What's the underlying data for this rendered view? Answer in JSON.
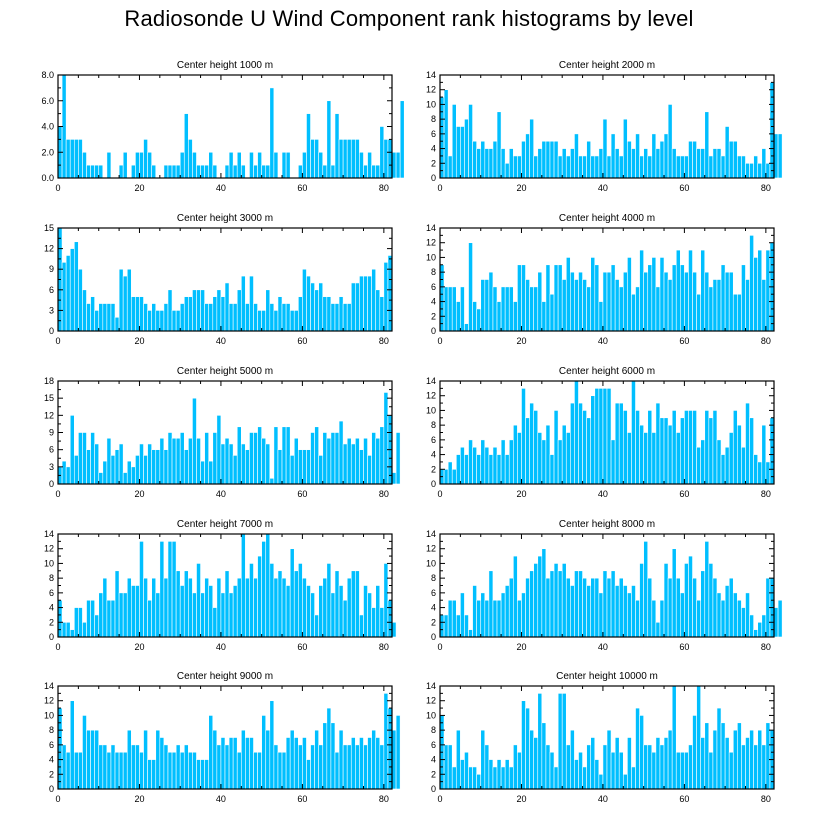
{
  "title": "Radiosonde U Wind Component rank histograms by level",
  "colors": {
    "bar": "#00bfff",
    "bar_edge": "#ffffff",
    "axis": "#000000"
  },
  "chart_data": [
    {
      "type": "bar",
      "title": "Center height 1000 m",
      "xlim": [
        0,
        82
      ],
      "ylim": [
        0,
        8
      ],
      "xticks": [
        0,
        20,
        40,
        60,
        80
      ],
      "xtick_labels": [
        "0",
        "20",
        "40",
        "60",
        "80"
      ],
      "yticks": [
        0,
        2,
        4,
        6,
        8
      ],
      "ytick_labels": [
        "0.0",
        "2.0",
        "4.0",
        "6.0",
        "8.0"
      ],
      "values": [
        4,
        8,
        3,
        3,
        3,
        3,
        2,
        1,
        1,
        1,
        1,
        0,
        2,
        0,
        0,
        1,
        2,
        0,
        1,
        2,
        2,
        3,
        2,
        1,
        0,
        0,
        1,
        1,
        1,
        1,
        2,
        5,
        3,
        2,
        1,
        1,
        1,
        2,
        1,
        0,
        0,
        1,
        2,
        1,
        2,
        1,
        0,
        2,
        1,
        2,
        1,
        1,
        7,
        2,
        0,
        2,
        2,
        0,
        0,
        1,
        2,
        5,
        3,
        3,
        2,
        1,
        6,
        1,
        5,
        3,
        3,
        3,
        3,
        3,
        2,
        1,
        2,
        1,
        1,
        4,
        3,
        3,
        2,
        2,
        6
      ]
    },
    {
      "type": "bar",
      "title": "Center height 2000 m",
      "xlim": [
        0,
        82
      ],
      "ylim": [
        0,
        14
      ],
      "xticks": [
        0,
        20,
        40,
        60,
        80
      ],
      "xtick_labels": [
        "0",
        "20",
        "40",
        "60",
        "80"
      ],
      "yticks": [
        0,
        2,
        4,
        6,
        8,
        10,
        12,
        14
      ],
      "ytick_labels": [
        "0",
        "2",
        "4",
        "6",
        "8",
        "10",
        "12",
        "14"
      ],
      "values": [
        11,
        12,
        3,
        10,
        7,
        7,
        8,
        10,
        5,
        4,
        5,
        4,
        4,
        5,
        9,
        4,
        2,
        4,
        3,
        3,
        5,
        6,
        8,
        3,
        4,
        5,
        5,
        5,
        5,
        3,
        4,
        3,
        4,
        6,
        3,
        3,
        5,
        3,
        3,
        4,
        8,
        3,
        6,
        4,
        3,
        8,
        5,
        4,
        6,
        3,
        4,
        3,
        6,
        4,
        5,
        6,
        10,
        4,
        3,
        3,
        3,
        5,
        5,
        4,
        4,
        9,
        3,
        4,
        4,
        3,
        7,
        5,
        5,
        3,
        3,
        2,
        2,
        3,
        2,
        4,
        2,
        13,
        6,
        6
      ]
    },
    {
      "type": "bar",
      "title": "Center height 3000 m",
      "xlim": [
        0,
        82
      ],
      "ylim": [
        0,
        15
      ],
      "xticks": [
        0,
        20,
        40,
        60,
        80
      ],
      "xtick_labels": [
        "0",
        "20",
        "40",
        "60",
        "80"
      ],
      "yticks": [
        0,
        3,
        6,
        9,
        12,
        15
      ],
      "ytick_labels": [
        "0",
        "3",
        "6",
        "9",
        "12",
        "15"
      ],
      "values": [
        15,
        10,
        11,
        12,
        13,
        9,
        6,
        4,
        5,
        3,
        4,
        4,
        4,
        4,
        2,
        9,
        8,
        9,
        5,
        5,
        5,
        4,
        3,
        4,
        3,
        3,
        4,
        6,
        3,
        3,
        4,
        5,
        5,
        6,
        6,
        6,
        4,
        4,
        5,
        6,
        5,
        7,
        4,
        4,
        6,
        8,
        4,
        8,
        4,
        3,
        3,
        6,
        4,
        3,
        5,
        4,
        4,
        3,
        3,
        5,
        9,
        8,
        7,
        6,
        7,
        5,
        5,
        4,
        4,
        5,
        4,
        4,
        7,
        7,
        8,
        8,
        8,
        9,
        6,
        5,
        10,
        11
      ]
    },
    {
      "type": "bar",
      "title": "Center height 4000 m",
      "xlim": [
        0,
        82
      ],
      "ylim": [
        0,
        14
      ],
      "xticks": [
        0,
        20,
        40,
        60,
        80
      ],
      "xtick_labels": [
        "0",
        "20",
        "40",
        "60",
        "80"
      ],
      "yticks": [
        0,
        2,
        4,
        6,
        8,
        10,
        12,
        14
      ],
      "ytick_labels": [
        "0",
        "2",
        "4",
        "6",
        "8",
        "10",
        "12",
        "14"
      ],
      "values": [
        9,
        6,
        6,
        6,
        4,
        6,
        1,
        12,
        4,
        3,
        7,
        7,
        8,
        6,
        4,
        6,
        6,
        6,
        4,
        9,
        9,
        7,
        6,
        6,
        8,
        4,
        9,
        5,
        9,
        9,
        7,
        10,
        8,
        7,
        8,
        7,
        6,
        10,
        9,
        4,
        8,
        8,
        9,
        7,
        6,
        8,
        10,
        5,
        6,
        11,
        8,
        9,
        10,
        6,
        10,
        8,
        7,
        9,
        11,
        9,
        8,
        11,
        8,
        5,
        11,
        8,
        6,
        7,
        7,
        9,
        8,
        8,
        5,
        5,
        9,
        7,
        13,
        10,
        11,
        7,
        11,
        12
      ]
    },
    {
      "type": "bar",
      "title": "Center height 5000 m",
      "xlim": [
        0,
        82
      ],
      "ylim": [
        0,
        18
      ],
      "xticks": [
        0,
        20,
        40,
        60,
        80
      ],
      "xtick_labels": [
        "0",
        "20",
        "40",
        "60",
        "80"
      ],
      "yticks": [
        0,
        3,
        6,
        9,
        12,
        15,
        18
      ],
      "ytick_labels": [
        "0",
        "3",
        "6",
        "9",
        "12",
        "15",
        "18"
      ],
      "values": [
        3,
        4,
        3,
        12,
        5,
        9,
        9,
        6,
        9,
        7,
        2,
        4,
        8,
        5,
        6,
        7,
        2,
        4,
        3,
        5,
        7,
        5,
        7,
        6,
        6,
        8,
        6,
        9,
        8,
        8,
        9,
        6,
        8,
        15,
        8,
        4,
        9,
        4,
        9,
        12,
        7,
        8,
        7,
        5,
        10,
        7,
        6,
        9,
        9,
        10,
        8,
        7,
        1,
        10,
        6,
        10,
        10,
        5,
        8,
        6,
        6,
        6,
        9,
        10,
        5,
        9,
        8,
        9,
        9,
        11,
        7,
        8,
        7,
        8,
        6,
        8,
        5,
        9,
        8,
        10,
        16,
        12,
        2,
        9
      ]
    },
    {
      "type": "bar",
      "title": "Center height 6000 m",
      "xlim": [
        0,
        82
      ],
      "ylim": [
        0,
        14
      ],
      "xticks": [
        0,
        20,
        40,
        60,
        80
      ],
      "xtick_labels": [
        "0",
        "20",
        "40",
        "60",
        "80"
      ],
      "yticks": [
        0,
        2,
        4,
        6,
        8,
        10,
        12,
        14
      ],
      "ytick_labels": [
        "0",
        "2",
        "4",
        "6",
        "8",
        "10",
        "12",
        "14"
      ],
      "values": [
        2,
        2,
        3,
        2,
        4,
        5,
        4,
        6,
        5,
        4,
        6,
        5,
        4,
        5,
        4,
        6,
        4,
        6,
        8,
        7,
        13,
        9,
        11,
        10,
        7,
        6,
        8,
        4,
        10,
        6,
        8,
        7,
        11,
        14,
        11,
        10,
        9,
        12,
        13,
        13,
        13,
        13,
        6,
        11,
        11,
        10,
        7,
        14,
        10,
        8,
        7,
        10,
        7,
        11,
        9,
        9,
        8,
        10,
        7,
        9,
        10,
        10,
        10,
        5,
        6,
        10,
        9,
        10,
        6,
        4,
        5,
        7,
        10,
        8,
        5,
        11,
        9,
        4,
        3,
        8,
        3,
        9
      ]
    },
    {
      "type": "bar",
      "title": "Center height 7000 m",
      "xlim": [
        0,
        82
      ],
      "ylim": [
        0,
        14
      ],
      "xticks": [
        0,
        20,
        40,
        60,
        80
      ],
      "xtick_labels": [
        "0",
        "20",
        "40",
        "60",
        "80"
      ],
      "yticks": [
        0,
        2,
        4,
        6,
        8,
        10,
        12,
        14
      ],
      "ytick_labels": [
        "0",
        "2",
        "4",
        "6",
        "8",
        "10",
        "12",
        "14"
      ],
      "values": [
        5,
        2,
        2,
        1,
        4,
        4,
        2,
        5,
        5,
        3,
        6,
        8,
        5,
        5,
        9,
        6,
        6,
        8,
        7,
        7,
        13,
        8,
        5,
        8,
        6,
        13,
        8,
        13,
        13,
        9,
        7,
        9,
        8,
        6,
        10,
        6,
        8,
        7,
        4,
        8,
        6,
        9,
        6,
        7,
        8,
        14,
        8,
        10,
        8,
        11,
        13,
        14,
        10,
        8,
        9,
        8,
        7,
        12,
        9,
        10,
        8,
        7,
        6,
        3,
        7,
        8,
        10,
        6,
        9,
        7,
        5,
        8,
        9,
        9,
        3,
        7,
        6,
        4,
        7,
        4,
        10,
        5,
        2
      ]
    },
    {
      "type": "bar",
      "title": "Center height 8000 m",
      "xlim": [
        0,
        82
      ],
      "ylim": [
        0,
        14
      ],
      "xticks": [
        0,
        20,
        40,
        60,
        80
      ],
      "xtick_labels": [
        "0",
        "20",
        "40",
        "60",
        "80"
      ],
      "yticks": [
        0,
        2,
        4,
        6,
        8,
        10,
        12,
        14
      ],
      "ytick_labels": [
        "0",
        "2",
        "4",
        "6",
        "8",
        "10",
        "12",
        "14"
      ],
      "values": [
        3,
        3,
        5,
        5,
        3,
        6,
        3,
        1,
        7,
        5,
        6,
        5,
        9,
        5,
        5,
        6,
        7,
        8,
        11,
        5,
        6,
        8,
        9,
        10,
        11,
        12,
        8,
        9,
        10,
        9,
        10,
        8,
        7,
        9,
        9,
        8,
        7,
        8,
        8,
        6,
        9,
        8,
        9,
        7,
        8,
        7,
        6,
        7,
        5,
        10,
        13,
        8,
        5,
        2,
        5,
        10,
        8,
        12,
        8,
        6,
        10,
        11,
        8,
        5,
        9,
        13,
        10,
        8,
        6,
        5,
        7,
        8,
        6,
        5,
        4,
        6,
        3,
        1,
        2,
        3,
        8,
        8,
        4,
        5
      ]
    },
    {
      "type": "bar",
      "title": "Center height 9000 m",
      "xlim": [
        0,
        82
      ],
      "ylim": [
        0,
        14
      ],
      "xticks": [
        0,
        20,
        40,
        60,
        80
      ],
      "xtick_labels": [
        "0",
        "20",
        "40",
        "60",
        "80"
      ],
      "yticks": [
        0,
        2,
        4,
        6,
        8,
        10,
        12,
        14
      ],
      "ytick_labels": [
        "0",
        "2",
        "4",
        "6",
        "8",
        "10",
        "12",
        "14"
      ],
      "values": [
        11,
        6,
        5,
        12,
        5,
        5,
        10,
        8,
        8,
        8,
        6,
        6,
        5,
        6,
        5,
        5,
        5,
        8,
        6,
        6,
        5,
        8,
        4,
        4,
        8,
        7,
        6,
        5,
        5,
        6,
        5,
        6,
        5,
        5,
        4,
        4,
        4,
        10,
        8,
        6,
        7,
        6,
        7,
        7,
        5,
        8,
        7,
        7,
        5,
        5,
        10,
        8,
        12,
        6,
        5,
        5,
        7,
        8,
        7,
        6,
        7,
        4,
        6,
        8,
        6,
        9,
        11,
        9,
        5,
        8,
        6,
        6,
        7,
        6,
        7,
        6,
        7,
        8,
        7,
        6,
        13,
        11,
        8,
        10
      ]
    },
    {
      "type": "bar",
      "title": "Center height 10000 m",
      "xlim": [
        0,
        82
      ],
      "ylim": [
        0,
        14
      ],
      "xticks": [
        0,
        20,
        40,
        60,
        80
      ],
      "xtick_labels": [
        "0",
        "20",
        "40",
        "60",
        "80"
      ],
      "yticks": [
        0,
        2,
        4,
        6,
        8,
        10,
        12,
        14
      ],
      "ytick_labels": [
        "0",
        "2",
        "4",
        "6",
        "8",
        "10",
        "12",
        "14"
      ],
      "values": [
        10,
        6,
        6,
        3,
        8,
        4,
        5,
        3,
        3,
        2,
        8,
        6,
        4,
        3,
        4,
        3,
        4,
        3,
        6,
        5,
        12,
        11,
        8,
        7,
        13,
        9,
        6,
        5,
        3,
        13,
        13,
        6,
        8,
        4,
        5,
        3,
        6,
        7,
        4,
        2,
        6,
        8,
        5,
        7,
        5,
        2,
        7,
        3,
        11,
        10,
        6,
        6,
        5,
        7,
        6,
        7,
        8,
        14,
        5,
        5,
        5,
        6,
        10,
        14,
        7,
        9,
        5,
        8,
        11,
        9,
        7,
        5,
        8,
        9,
        6,
        7,
        8,
        6,
        8,
        6,
        9,
        8
      ]
    }
  ]
}
